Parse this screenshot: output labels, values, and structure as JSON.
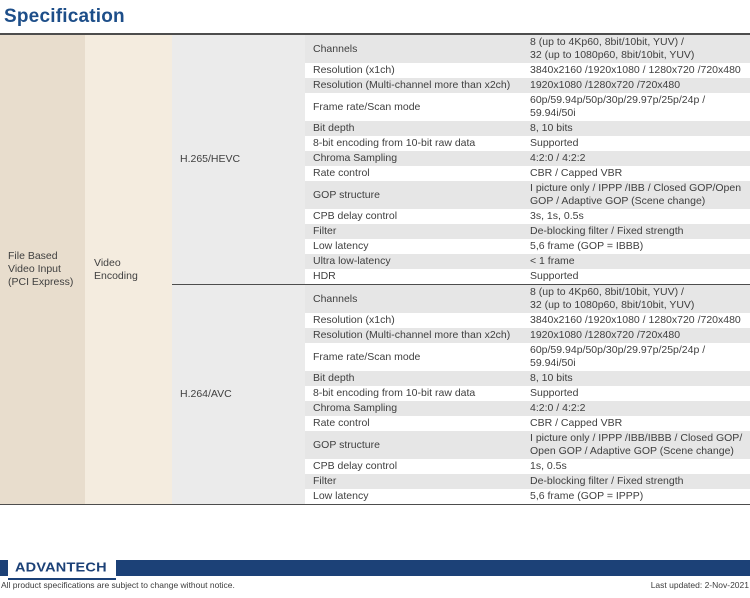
{
  "page": {
    "title": "Specification"
  },
  "colors": {
    "title_blue": "#1d4e89",
    "footer_blue": "#1c4177",
    "group_col_bg": "#e8ddcd",
    "category_col_bg": "#f4ecdf",
    "codec_col_bg": "#ebebeb",
    "stripe_gray": "#e6e6e6"
  },
  "table": {
    "group_label": "File Based Video Input (PCI Express)",
    "category_label": "Video Encoding",
    "sections": [
      {
        "codec": "H.265/HEVC",
        "rows": [
          {
            "property": "Channels",
            "value": "8 (up to 4Kp60, 8bit/10bit, YUV) /\n32 (up to 1080p60, 8bit/10bit, YUV)"
          },
          {
            "property": "Resolution (x1ch)",
            "value": "3840x2160 /1920x1080 / 1280x720 /720x480"
          },
          {
            "property": "Resolution (Multi-channel more than x2ch)",
            "value": "1920x1080 /1280x720 /720x480"
          },
          {
            "property": "Frame rate/Scan mode",
            "value": "60p/59.94p/50p/30p/29.97p/25p/24p /\n59.94i/50i"
          },
          {
            "property": "Bit depth",
            "value": "8, 10 bits"
          },
          {
            "property": "8-bit encoding from 10-bit raw data",
            "value": "Supported"
          },
          {
            "property": "Chroma  Sampling",
            "value": "4:2:0 / 4:2:2"
          },
          {
            "property": "Rate control",
            "value": "CBR / Capped VBR"
          },
          {
            "property": "GOP structure",
            "value": "I picture only / IPPP /IBB / Closed GOP/Open\nGOP / Adaptive GOP (Scene change)"
          },
          {
            "property": "CPB delay control",
            "value": "3s, 1s, 0.5s"
          },
          {
            "property": "Filter",
            "value": "De-blocking filter / Fixed strength"
          },
          {
            "property": "Low latency",
            "value": "5,6 frame (GOP = IBBB)"
          },
          {
            "property": "Ultra low-latency",
            "value": "< 1 frame"
          },
          {
            "property": "HDR",
            "value": "Supported"
          }
        ]
      },
      {
        "codec": "H.264/AVC",
        "rows": [
          {
            "property": "Channels",
            "value": "8 (up to 4Kp60, 8bit/10bit, YUV) /\n32 (up to 1080p60, 8bit/10bit, YUV)"
          },
          {
            "property": "Resolution (x1ch)",
            "value": "3840x2160 /1920x1080 / 1280x720 /720x480"
          },
          {
            "property": "Resolution (Multi-channel more than x2ch)",
            "value": "1920x1080 /1280x720 /720x480"
          },
          {
            "property": "Frame rate/Scan mode",
            "value": "60p/59.94p/50p/30p/29.97p/25p/24p /\n59.94i/50i"
          },
          {
            "property": "Bit depth",
            "value": "8, 10 bits"
          },
          {
            "property": "8-bit encoding from 10-bit raw data",
            "value": "Supported"
          },
          {
            "property": "Chroma  Sampling",
            "value": "4:2:0 / 4:2:2"
          },
          {
            "property": "Rate control",
            "value": "CBR / Capped VBR"
          },
          {
            "property": "GOP structure",
            "value": "I picture only / IPPP /IBB/IBBB / Closed GOP/\nOpen GOP / Adaptive GOP (Scene change)"
          },
          {
            "property": "CPB delay control",
            "value": "1s, 0.5s"
          },
          {
            "property": "Filter",
            "value": "De-blocking filter / Fixed strength"
          },
          {
            "property": "Low latency",
            "value": "5,6 frame (GOP = IPPP)"
          }
        ]
      }
    ]
  },
  "footer": {
    "logo_text": "ADVANTECH",
    "disclaimer": "All product specifications are subject to change without notice.",
    "last_updated": "Last updated: 2-Nov-2021"
  }
}
